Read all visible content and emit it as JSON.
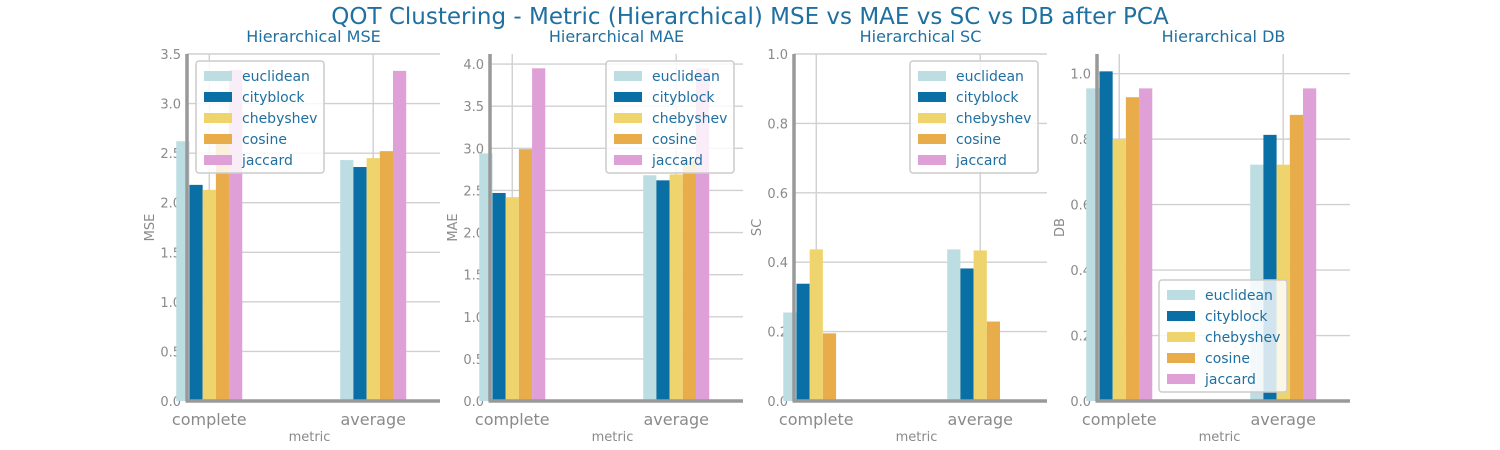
{
  "suptitle": "QOT Clustering - Metric (Hierarchical) MSE vs MAE vs SC vs DB after PCA",
  "colors": {
    "euclidean": "#bcdde1",
    "cityblock": "#0a6fa4",
    "chebyshev": "#efd46e",
    "cosine": "#e8ac4a",
    "jaccard": "#dfa0d8",
    "grid": "#d0d0d0",
    "spine": "#999999"
  },
  "chart_data": [
    {
      "type": "bar",
      "title": "Hierarchical MSE",
      "xlabel": "metric",
      "ylabel": "MSE",
      "categories": [
        "complete",
        "average"
      ],
      "ylim": [
        0,
        3.5
      ],
      "yticks": [
        "0.0",
        "0.5",
        "1.0",
        "1.5",
        "2.0",
        "2.5",
        "3.0",
        "3.5"
      ],
      "legend_position": "upper-left",
      "series": [
        {
          "name": "euclidean",
          "values": [
            2.62,
            2.43
          ]
        },
        {
          "name": "cityblock",
          "values": [
            2.18,
            2.36
          ]
        },
        {
          "name": "chebyshev",
          "values": [
            2.13,
            2.45
          ]
        },
        {
          "name": "cosine",
          "values": [
            2.6,
            2.52
          ]
        },
        {
          "name": "jaccard",
          "values": [
            3.34,
            3.33
          ]
        }
      ]
    },
    {
      "type": "bar",
      "title": "Hierarchical MAE",
      "xlabel": "metric",
      "ylabel": "MAE",
      "categories": [
        "complete",
        "average"
      ],
      "ylim": [
        0,
        4.12
      ],
      "yticks": [
        "0.0",
        "0.5",
        "1.0",
        "1.5",
        "2.0",
        "2.5",
        "3.0",
        "3.5",
        "4.0"
      ],
      "legend_position": "upper-right",
      "series": [
        {
          "name": "euclidean",
          "values": [
            2.94,
            2.68
          ]
        },
        {
          "name": "cityblock",
          "values": [
            2.47,
            2.62
          ]
        },
        {
          "name": "chebyshev",
          "values": [
            2.42,
            2.69
          ]
        },
        {
          "name": "cosine",
          "values": [
            2.99,
            2.85
          ]
        },
        {
          "name": "jaccard",
          "values": [
            3.95,
            3.95
          ]
        }
      ]
    },
    {
      "type": "bar",
      "title": "Hierarchical SC",
      "xlabel": "metric",
      "ylabel": "SC",
      "categories": [
        "complete",
        "average"
      ],
      "ylim": [
        0,
        1.0
      ],
      "yticks": [
        "0.0",
        "0.2",
        "0.4",
        "0.6",
        "0.8",
        "1.0"
      ],
      "legend_position": "upper-right",
      "series": [
        {
          "name": "euclidean",
          "values": [
            0.255,
            0.437
          ]
        },
        {
          "name": "cityblock",
          "values": [
            0.338,
            0.382
          ]
        },
        {
          "name": "chebyshev",
          "values": [
            0.437,
            0.434
          ]
        },
        {
          "name": "cosine",
          "values": [
            0.195,
            0.229
          ]
        },
        {
          "name": "jaccard",
          "values": [
            0,
            0
          ]
        }
      ]
    },
    {
      "type": "bar",
      "title": "Hierarchical DB",
      "xlabel": "metric",
      "ylabel": "DB",
      "categories": [
        "complete",
        "average"
      ],
      "ylim": [
        0,
        1.06
      ],
      "yticks": [
        "0.0",
        "0.2",
        "0.4",
        "0.6",
        "0.8",
        "1.0"
      ],
      "legend_position": "lower-center",
      "series": [
        {
          "name": "euclidean",
          "values": [
            0.955,
            0.722
          ]
        },
        {
          "name": "cityblock",
          "values": [
            1.007,
            0.813
          ]
        },
        {
          "name": "chebyshev",
          "values": [
            0.8,
            0.722
          ]
        },
        {
          "name": "cosine",
          "values": [
            0.928,
            0.874
          ]
        },
        {
          "name": "jaccard",
          "values": [
            0.955,
            0.955
          ]
        }
      ]
    }
  ]
}
